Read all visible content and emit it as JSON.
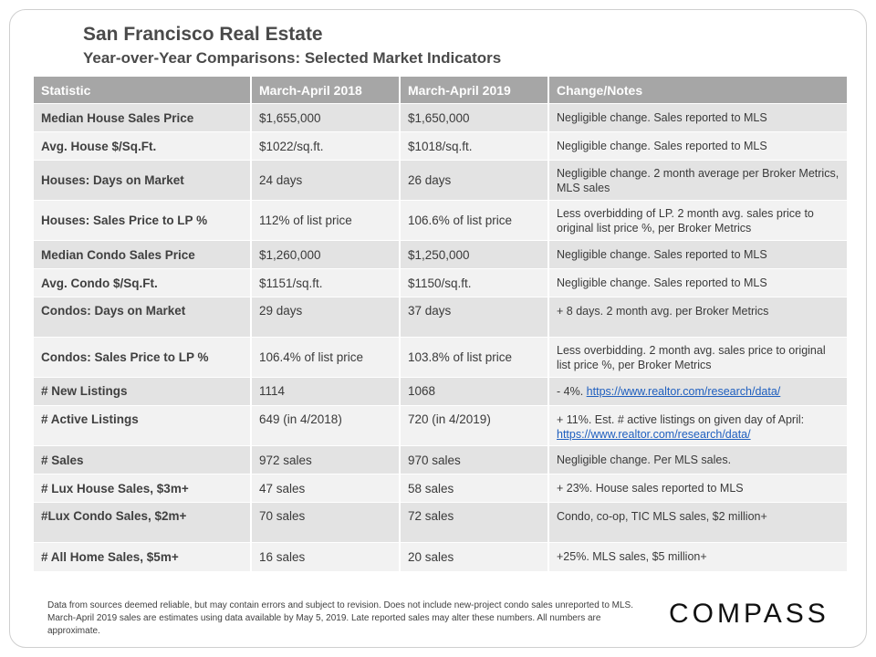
{
  "title": "San Francisco Real Estate",
  "subtitle": "Year-over-Year  Comparisons:  Selected Market Indicators",
  "table": {
    "headers": [
      "Statistic",
      "March-April  2018",
      "March-April  2019",
      "Change/Notes"
    ],
    "rows": [
      {
        "stat": "Median House Sales Price",
        "v2018": "$1,655,000",
        "v2019": "$1,650,000",
        "note": "Negligible change. Sales reported to MLS",
        "link": ""
      },
      {
        "stat": "Avg. House $/Sq.Ft.",
        "v2018": "$1022/sq.ft.",
        "v2019": "$1018/sq.ft.",
        "note": "Negligible change. Sales reported to MLS",
        "link": ""
      },
      {
        "stat": "Houses: Days on Market",
        "v2018": "24 days",
        "v2019": "26 days",
        "note": "Negligible change. 2 month average per Broker Metrics, MLS sales",
        "link": ""
      },
      {
        "stat": "Houses: Sales Price to LP %",
        "v2018": "112% of list price",
        "v2019": "106.6% of list price",
        "note": "Less overbidding of LP. 2 month avg. sales price to original list price %, per Broker Metrics",
        "link": ""
      },
      {
        "stat": "Median Condo Sales Price",
        "v2018": "$1,260,000",
        "v2019": "$1,250,000",
        "note": "Negligible change. Sales reported to MLS",
        "link": ""
      },
      {
        "stat": "Avg. Condo $/Sq.Ft.",
        "v2018": "$1151/sq.ft.",
        "v2019": "$1150/sq.ft.",
        "note": "Negligible change. Sales reported to MLS",
        "link": ""
      },
      {
        "stat": "Condos: Days on Market",
        "v2018": "29 days",
        "v2019": "37 days",
        "note": "+ 8 days. 2 month avg. per Broker Metrics",
        "link": ""
      },
      {
        "stat": "Condos: Sales Price to LP %",
        "v2018": "106.4% of list price",
        "v2019": "103.8% of list price",
        "note": "Less overbidding. 2 month avg. sales price to original list price %, per Broker Metrics",
        "link": ""
      },
      {
        "stat": "# New Listings",
        "v2018": "1114",
        "v2019": "1068",
        "note": "- 4%.",
        "link": "https://www.realtor.com/research/data/"
      },
      {
        "stat": "# Active Listings",
        "v2018": "649  (in 4/2018)",
        "v2019": "720  (in 4/2019)",
        "note": "+ 11%. Est. # active listings on given day of April:",
        "link": "https://www.realtor.com/research/data/"
      },
      {
        "stat": "# Sales",
        "v2018": "972 sales",
        "v2019": "970 sales",
        "note": "Negligible change. Per MLS sales.",
        "link": ""
      },
      {
        "stat": "# Lux House Sales, $3m+",
        "v2018": "47 sales",
        "v2019": "58 sales",
        "note": "+ 23%. House sales reported to MLS",
        "link": ""
      },
      {
        "stat": "#Lux Condo Sales, $2m+",
        "v2018": "70 sales",
        "v2019": "72 sales",
        "note": "Condo, co-op, TIC MLS sales, $2 million+",
        "link": ""
      },
      {
        "stat": "# All Home Sales, $5m+",
        "v2018": "16 sales",
        "v2019": "20 sales",
        "note": "+25%. MLS sales, $5 million+",
        "link": ""
      }
    ]
  },
  "footnote": "Data from sources deemed reliable, but may contain errors and subject to revision. Does not include new-project condo sales unreported to MLS. March-April 2019 sales are estimates using data available by May 5, 2019. Late reported sales may alter these numbers. All numbers are approximate.",
  "logo": "COMPASS"
}
